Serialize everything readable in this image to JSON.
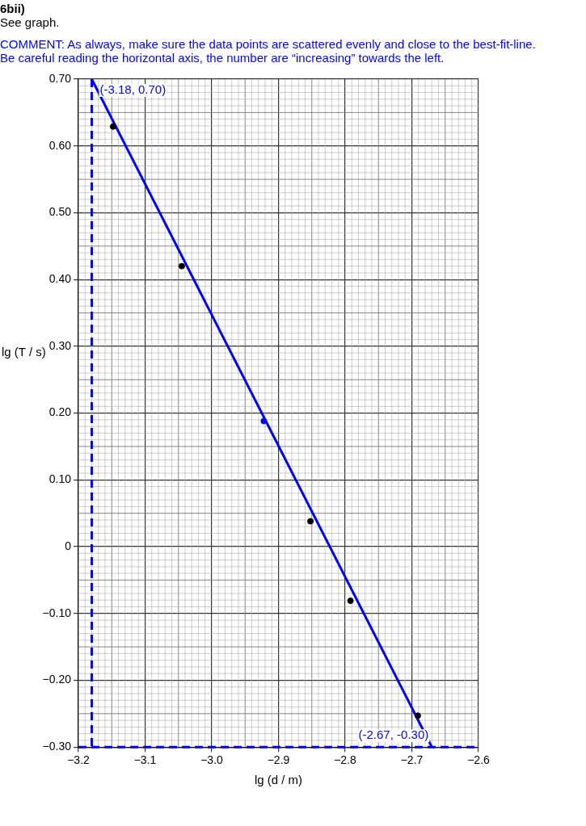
{
  "chart_data": {
    "type": "scatter",
    "title": "6bii)",
    "subtitle": "See graph.",
    "xlabel": "lg (d / m)",
    "ylabel": "lg (T / s)",
    "annotations": [
      "COMMENT: As always, make sure the data points are scattered evenly and close to the best-fit-line.",
      "Be careful reading the horizontal axis, the number are “increasing” towards the left.",
      {
        "text": "(-3.18, 0.70)",
        "x": -3.18,
        "y": 0.7
      },
      {
        "text": "(-2.67, -0.30)",
        "x": -2.67,
        "y": -0.3
      }
    ],
    "series": [
      {
        "color": "#000000",
        "colors": [
          "#000000",
          "#000000",
          "#0000ff",
          "#000000",
          "#000000",
          "#000000"
        ],
        "x": [
          -3.148,
          -3.045,
          -2.922,
          -2.852,
          -2.792,
          -2.691
        ],
        "values": [
          0.629,
          0.42,
          0.188,
          0.038,
          -0.081,
          -0.253
        ]
      },
      {
        "type": "line",
        "color": "#0000ff",
        "marker": "none",
        "x": [
          -3.18,
          -2.67
        ],
        "values": [
          0.7,
          -0.3
        ]
      }
    ],
    "ref_lines": [
      {
        "axis": "x",
        "value": -3.18,
        "label": null,
        "color": "#0000ff",
        "line_style": "dashed"
      },
      {
        "axis": "y",
        "value": -0.3,
        "label": null,
        "color": "#0000ff",
        "line_style": "dashed"
      }
    ],
    "xlim": [
      -3.2,
      -2.6
    ],
    "ylim": [
      -0.3,
      0.7
    ],
    "xticks": [
      {
        "value": -3.2,
        "label": "−3.2"
      },
      {
        "value": -3.1,
        "label": "−3.1"
      },
      {
        "value": -3,
        "label": "−3.0"
      },
      {
        "value": -2.9,
        "label": "−2.9"
      },
      {
        "value": -2.8,
        "label": "−2.8"
      },
      {
        "value": -2.7,
        "label": "−2.7"
      },
      {
        "value": -2.6,
        "label": "−2.6"
      }
    ],
    "yticks": [
      {
        "value": -0.3,
        "label": "−0.30"
      },
      {
        "value": -0.2,
        "label": "−0.20"
      },
      {
        "value": -0.1,
        "label": "−0.10"
      },
      0,
      {
        "value": 0.1,
        "label": "0.10"
      },
      {
        "value": 0.2,
        "label": "0.20"
      },
      {
        "value": 0.3,
        "label": "0.30"
      },
      {
        "value": 0.4,
        "label": "0.40"
      },
      {
        "value": 0.5,
        "label": "0.50"
      },
      {
        "value": 0.6,
        "label": "0.60"
      },
      {
        "value": 0.7,
        "label": "0.70"
      }
    ],
    "grid": true,
    "marker": "circle",
    "legend": false
  }
}
